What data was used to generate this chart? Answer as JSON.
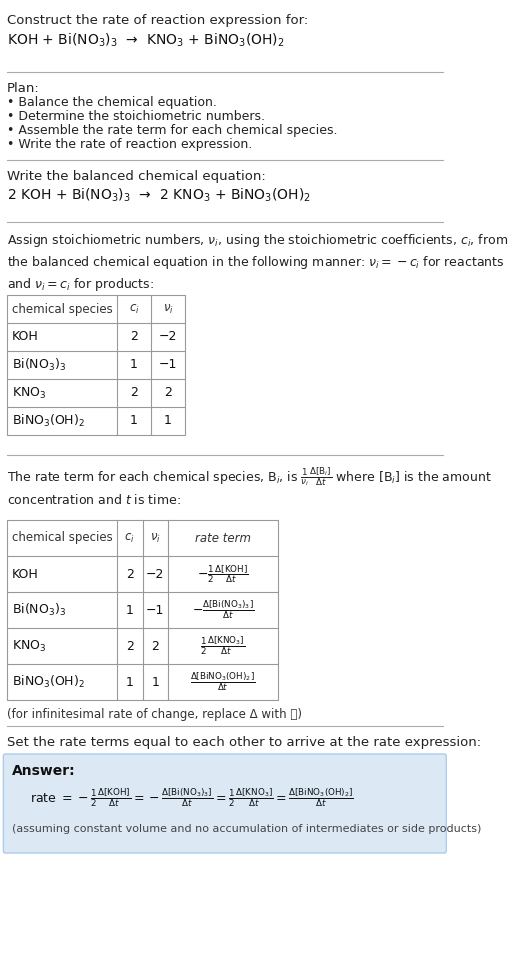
{
  "bg_color": "#ffffff",
  "title_text": "Construct the rate of reaction expression for:",
  "reaction_unbalanced": "KOH + Bi(NO$_3$)$_3$  →  KNO$_3$ + BiNO$_3$(OH)$_2$",
  "plan_header": "Plan:",
  "plan_items": [
    "• Balance the chemical equation.",
    "• Determine the stoichiometric numbers.",
    "• Assemble the rate term for each chemical species.",
    "• Write the rate of reaction expression."
  ],
  "balanced_header": "Write the balanced chemical equation:",
  "reaction_balanced": "2 KOH + Bi(NO$_3$)$_3$  →  2 KNO$_3$ + BiNO$_3$(OH)$_2$",
  "stoich_header": "Assign stoichiometric numbers, $\\nu_i$, using the stoichiometric coefficients, $c_i$, from\nthe balanced chemical equation in the following manner: $\\nu_i = -c_i$ for reactants\nand $\\nu_i = c_i$ for products:",
  "table1_headers": [
    "chemical species",
    "$c_i$",
    "$\\nu_i$"
  ],
  "table1_rows": [
    [
      "KOH",
      "2",
      "−2"
    ],
    [
      "Bi(NO$_3$)$_3$",
      "1",
      "−1"
    ],
    [
      "KNO$_3$",
      "2",
      "2"
    ],
    [
      "BiNO$_3$(OH)$_2$",
      "1",
      "1"
    ]
  ],
  "rate_header": "The rate term for each chemical species, B$_i$, is $\\frac{1}{\\nu_i}\\frac{\\Delta[\\mathrm{B}_i]}{\\Delta t}$ where [B$_i$] is the amount\nconcentration and $t$ is time:",
  "table2_headers": [
    "chemical species",
    "$c_i$",
    "$\\nu_i$",
    "rate term"
  ],
  "table2_rows": [
    [
      "KOH",
      "2",
      "−2",
      "$-\\frac{1}{2}\\frac{\\Delta[\\mathrm{KOH}]}{\\Delta t}$"
    ],
    [
      "Bi(NO$_3$)$_3$",
      "1",
      "−1",
      "$-\\frac{\\Delta[\\mathrm{Bi(NO_3)_3}]}{\\Delta t}$"
    ],
    [
      "KNO$_3$",
      "2",
      "2",
      "$\\frac{1}{2}\\frac{\\Delta[\\mathrm{KNO_3}]}{\\Delta t}$"
    ],
    [
      "BiNO$_3$(OH)$_2$",
      "1",
      "1",
      "$\\frac{\\Delta[\\mathrm{BiNO_3(OH)_2}]}{\\Delta t}$"
    ]
  ],
  "infinitesimal_note": "(for infinitesimal rate of change, replace Δ with 𝑑)",
  "set_rate_header": "Set the rate terms equal to each other to arrive at the rate expression:",
  "answer_label": "Answer:",
  "answer_box_color": "#dce9f5",
  "rate_expression": "rate $= -\\frac{1}{2}\\frac{\\Delta[\\mathrm{KOH}]}{\\Delta t} = -\\frac{\\Delta[\\mathrm{Bi(NO_3)_3}]}{\\Delta t} = \\frac{1}{2}\\frac{\\Delta[\\mathrm{KNO_3}]}{\\Delta t} = \\frac{\\Delta[\\mathrm{BiNO_3(OH)_2}]}{\\Delta t}$",
  "assumption_note": "(assuming constant volume and no accumulation of intermediates or side products)"
}
